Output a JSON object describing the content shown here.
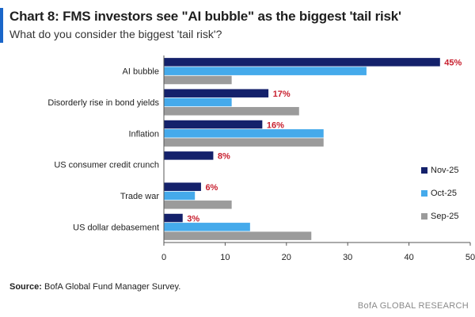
{
  "header": {
    "title": "Chart 8: FMS investors see \"AI bubble\" as the biggest 'tail risk'",
    "subtitle": "What do you consider the biggest 'tail risk'?"
  },
  "footer": {
    "source_label": "Source:",
    "source_text": " BofA Global Fund Manager Survey.",
    "brand": "BofA GLOBAL RESEARCH"
  },
  "colors": {
    "accent": "#1a66c9",
    "nov": "#14216b",
    "oct": "#45aaeb",
    "sep": "#9b9b9b",
    "label_red": "#c8202f",
    "axis": "#555555"
  },
  "chart_data": {
    "type": "bar",
    "orientation": "horizontal",
    "title": "Chart 8: FMS investors see \"AI bubble\" as the biggest 'tail risk'",
    "subtitle": "What do you consider the biggest 'tail risk'?",
    "categories": [
      "AI bubble",
      "Disorderly rise in bond yields",
      "Inflation",
      "US consumer credit crunch",
      "Trade war",
      "US dollar debasement"
    ],
    "series": [
      {
        "name": "Nov-25",
        "values": [
          45,
          17,
          16,
          8,
          6,
          3
        ],
        "color": "#14216b"
      },
      {
        "name": "Oct-25",
        "values": [
          33,
          11,
          26,
          0,
          5,
          14
        ],
        "color": "#45aaeb"
      },
      {
        "name": "Sep-25",
        "values": [
          11,
          22,
          26,
          0,
          11,
          24
        ],
        "color": "#9b9b9b"
      }
    ],
    "data_labels": [
      "45%",
      "17%",
      "16%",
      "8%",
      "6%",
      "3%"
    ],
    "xlim": [
      0,
      50
    ],
    "xticks": [
      0,
      10,
      20,
      30,
      40,
      50
    ],
    "legend_position": "right",
    "grid": false
  }
}
